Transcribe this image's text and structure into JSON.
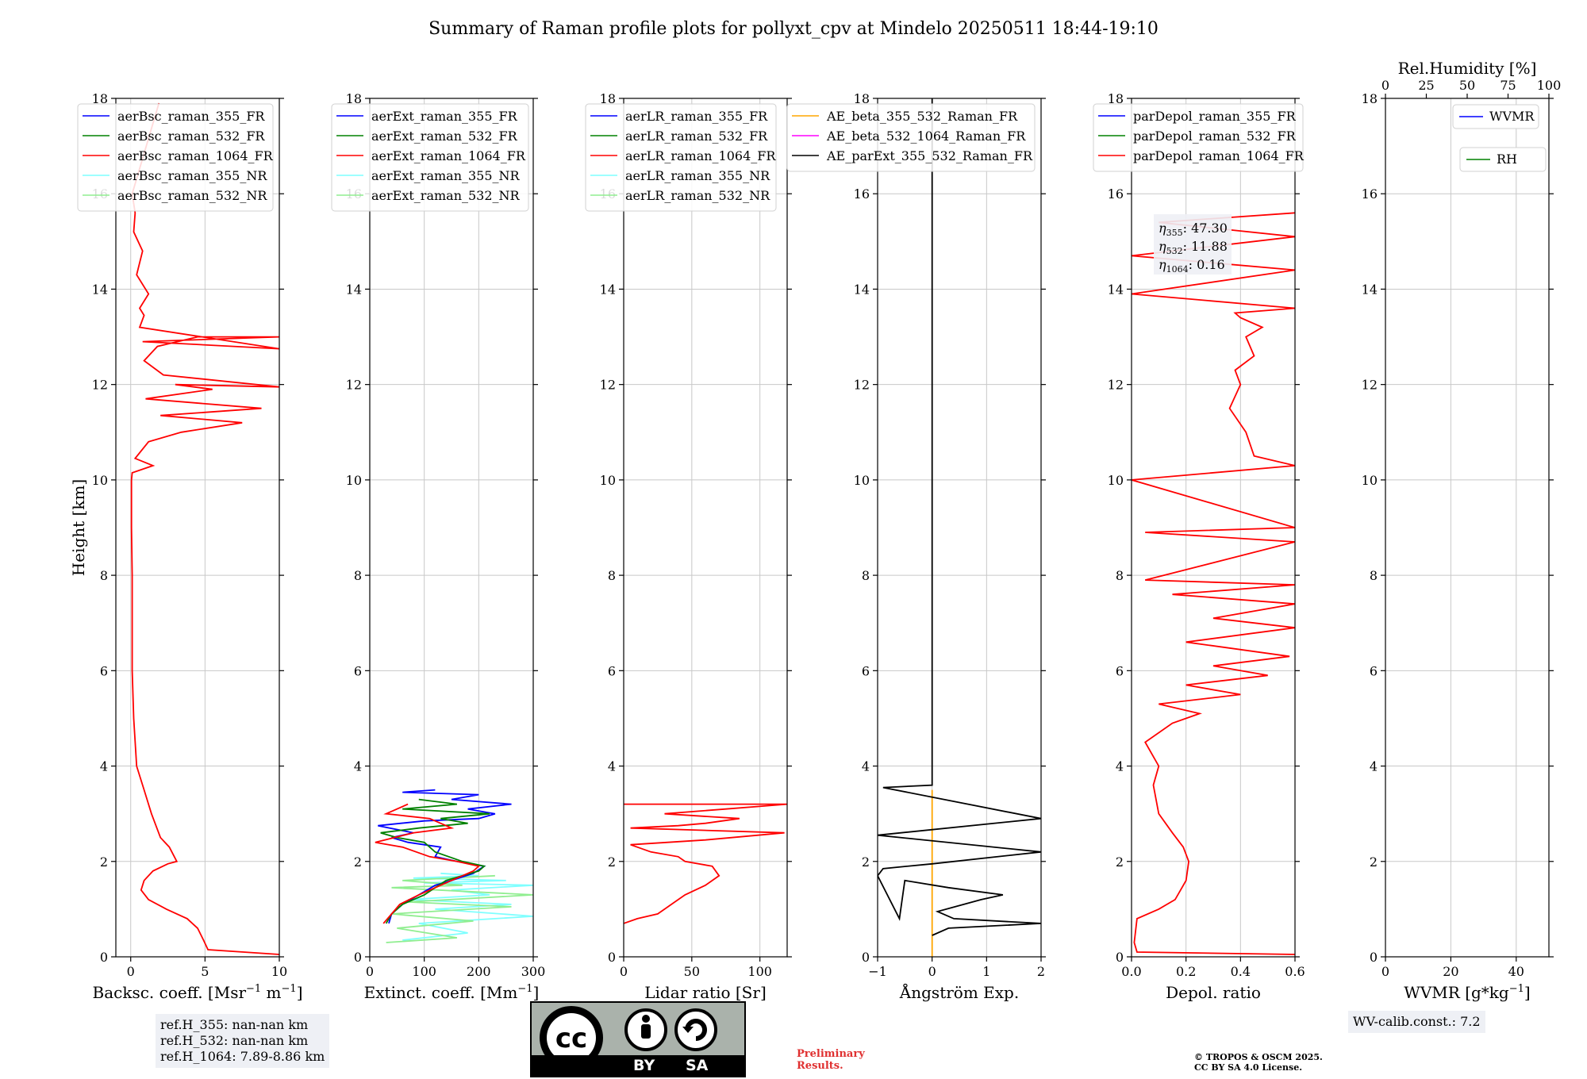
{
  "title": "Summary of Raman profile plots for pollyxt_cpv at Mindelo 20250511 18:44-19:10",
  "chart_data": [
    {
      "type": "line",
      "id": "bsc",
      "xlabel": "Backsc. coeff. [Msr",
      "xlabel_sup1": "−1",
      "xlabel_mid": " m",
      "xlabel_sup2": "−1",
      "xlabel_end": "]",
      "ylabel": "Height [km]",
      "xlim": [
        -1,
        10
      ],
      "ylim": [
        0,
        18
      ],
      "xticks": [
        "0",
        "5",
        "10"
      ],
      "xtick_values": [
        0,
        5,
        10
      ],
      "yticks": [
        "0",
        "2",
        "4",
        "6",
        "8",
        "10",
        "12",
        "14",
        "16",
        "18"
      ],
      "grid": true,
      "legend_position": "top-left",
      "legend": [
        "aerBsc_raman_355_FR",
        "aerBsc_raman_532_FR",
        "aerBsc_raman_1064_FR",
        "aerBsc_raman_355_NR",
        "aerBsc_raman_532_NR"
      ],
      "legend_colors": [
        "#0000ff",
        "#008000",
        "#ff0000",
        "#7fffff",
        "#90ee90"
      ],
      "series": [
        {
          "name": "aerBsc_raman_1064_FR",
          "color": "#ff0000",
          "x": [
            10,
            5.2,
            4.9,
            4.5,
            3.8,
            2.4,
            1.2,
            0.7,
            0.9,
            1.5,
            2.5,
            3.1,
            2.6,
            2.0,
            1.4,
            0.9,
            0.4,
            0.2,
            0.1,
            0.1,
            0.05,
            0.05,
            0.1,
            1.5,
            0.3,
            1.2,
            3.4,
            7.5,
            2.0,
            8.8,
            1.0,
            5.5,
            3.0,
            10,
            2.2,
            0.9,
            1.8,
            4.5,
            10,
            0.8,
            10,
            0.6,
            0.9,
            0.6,
            1.2,
            0.4,
            0.8,
            0.2,
            0.3,
            0.1,
            1.9
          ],
          "y": [
            0.05,
            0.15,
            0.35,
            0.6,
            0.8,
            1.0,
            1.2,
            1.4,
            1.6,
            1.8,
            1.95,
            2.0,
            2.3,
            2.5,
            3.0,
            3.5,
            4.0,
            5.0,
            6.0,
            8.0,
            9.0,
            10.0,
            10.15,
            10.3,
            10.45,
            10.8,
            11.0,
            11.2,
            11.35,
            11.5,
            11.7,
            11.9,
            12.0,
            11.95,
            12.2,
            12.5,
            12.8,
            13.0,
            13.0,
            12.9,
            12.75,
            13.2,
            13.45,
            13.6,
            13.9,
            14.3,
            14.8,
            15.2,
            15.6,
            16.0,
            17.9
          ]
        }
      ]
    },
    {
      "type": "line",
      "id": "ext",
      "xlabel": "Extinct. coeff. [Mm",
      "xlabel_sup1": "−1",
      "xlabel_end": "]",
      "xlim": [
        0,
        300
      ],
      "ylim": [
        0,
        18
      ],
      "xticks": [
        "0",
        "100",
        "200",
        "300"
      ],
      "xtick_values": [
        0,
        100,
        200,
        300
      ],
      "yticks": [
        "0",
        "2",
        "4",
        "6",
        "8",
        "10",
        "12",
        "14",
        "16",
        "18"
      ],
      "grid": true,
      "legend_position": "top-left",
      "legend": [
        "aerExt_raman_355_FR",
        "aerExt_raman_532_FR",
        "aerExt_raman_1064_FR",
        "aerExt_raman_355_NR",
        "aerExt_raman_532_NR"
      ],
      "legend_colors": [
        "#0000ff",
        "#008000",
        "#ff0000",
        "#7fffff",
        "#90ee90"
      ],
      "series": [
        {
          "name": "aerExt_raman_355_NR",
          "color": "#7fffff",
          "x": [
            60,
            180,
            90,
            300,
            120,
            260,
            70,
            220,
            150,
            300,
            100,
            250,
            80,
            200,
            130
          ],
          "y": [
            0.35,
            0.5,
            0.7,
            0.85,
            1.0,
            1.1,
            1.2,
            1.3,
            1.4,
            1.5,
            1.55,
            1.6,
            1.65,
            1.7,
            1.75
          ]
        },
        {
          "name": "aerExt_raman_532_NR",
          "color": "#90ee90",
          "x": [
            30,
            160,
            50,
            190,
            40,
            260,
            70,
            300,
            40,
            170,
            60,
            230
          ],
          "y": [
            0.3,
            0.4,
            0.6,
            0.75,
            0.9,
            1.05,
            1.15,
            1.3,
            1.45,
            1.5,
            1.6,
            1.7
          ]
        },
        {
          "name": "aerExt_raman_355_FR",
          "color": "#0000ff",
          "x": [
            35,
            40,
            60,
            90,
            120,
            150,
            190,
            210,
            160,
            120,
            130,
            70,
            40,
            80,
            15,
            100,
            200,
            230,
            180,
            260,
            150,
            200,
            60,
            120
          ],
          "y": [
            0.7,
            0.9,
            1.1,
            1.3,
            1.5,
            1.6,
            1.75,
            1.9,
            2.0,
            2.1,
            2.3,
            2.4,
            2.5,
            2.6,
            2.75,
            2.85,
            2.9,
            3.0,
            3.1,
            3.2,
            3.3,
            3.4,
            3.45,
            3.5
          ]
        },
        {
          "name": "aerExt_raman_532_FR",
          "color": "#008000",
          "x": [
            30,
            40,
            60,
            100,
            140,
            200,
            210,
            170,
            120,
            100,
            50,
            20,
            90,
            180,
            130,
            220,
            60,
            160,
            90
          ],
          "y": [
            0.7,
            0.9,
            1.1,
            1.3,
            1.6,
            1.8,
            1.9,
            2.0,
            2.2,
            2.4,
            2.5,
            2.6,
            2.7,
            2.8,
            2.9,
            3.0,
            3.1,
            3.2,
            3.3
          ]
        },
        {
          "name": "aerExt_raman_1064_FR",
          "color": "#ff0000",
          "x": [
            25,
            40,
            55,
            90,
            150,
            190,
            200,
            160,
            110,
            60,
            10,
            80,
            150,
            110,
            30,
            70
          ],
          "y": [
            0.7,
            0.9,
            1.1,
            1.3,
            1.6,
            1.8,
            1.9,
            2.0,
            2.1,
            2.3,
            2.4,
            2.6,
            2.7,
            2.9,
            3.0,
            3.2
          ]
        }
      ]
    },
    {
      "type": "line",
      "id": "lr",
      "xlabel": "Lidar ratio [Sr]",
      "xlim": [
        0,
        120
      ],
      "ylim": [
        0,
        18
      ],
      "xticks": [
        "0",
        "50",
        "100"
      ],
      "xtick_values": [
        0,
        50,
        100
      ],
      "yticks": [
        "0",
        "2",
        "4",
        "6",
        "8",
        "10",
        "12",
        "14",
        "16",
        "18"
      ],
      "grid": true,
      "legend_position": "top-left",
      "legend": [
        "aerLR_raman_355_FR",
        "aerLR_raman_532_FR",
        "aerLR_raman_1064_FR",
        "aerLR_raman_355_NR",
        "aerLR_raman_532_NR"
      ],
      "legend_colors": [
        "#0000ff",
        "#008000",
        "#ff0000",
        "#7fffff",
        "#90ee90"
      ],
      "series": [
        {
          "name": "aerLR_raman_1064_FR",
          "color": "#ff0000",
          "x": [
            0,
            10,
            25,
            35,
            45,
            60,
            70,
            65,
            45,
            40,
            20,
            5,
            60,
            118,
            5,
            40,
            60,
            85,
            30,
            75,
            120,
            0
          ],
          "y": [
            0.7,
            0.8,
            0.9,
            1.1,
            1.3,
            1.5,
            1.7,
            1.9,
            2.0,
            2.1,
            2.2,
            2.35,
            2.45,
            2.6,
            2.7,
            2.75,
            2.8,
            2.9,
            3.0,
            3.1,
            3.2,
            3.2
          ]
        }
      ]
    },
    {
      "type": "line",
      "id": "ae",
      "xlabel": "Ångström Exp.",
      "xlim": [
        -1,
        2
      ],
      "ylim": [
        0,
        18
      ],
      "xticks": [
        "−1",
        "0",
        "1",
        "2"
      ],
      "xtick_values": [
        -1,
        0,
        1,
        2
      ],
      "yticks": [
        "0",
        "2",
        "4",
        "6",
        "8",
        "10",
        "12",
        "14",
        "16",
        "18"
      ],
      "grid": true,
      "legend_position": "top-left",
      "legend": [
        "AE_beta_355_532_Raman_FR",
        "AE_beta_532_1064_Raman_FR",
        "AE_parExt_355_532_Raman_FR"
      ],
      "legend_colors": [
        "#ffa500",
        "#ff00ff",
        "#000000"
      ],
      "series": [
        {
          "name": "AE_beta_355_532_Raman_FR",
          "color": "#ffa500",
          "x": [
            0,
            0
          ],
          "y": [
            0,
            3.5
          ]
        },
        {
          "name": "AE_parExt_355_532_Raman_FR",
          "color": "#000000",
          "x": [
            0,
            0.3,
            2.0,
            0.4,
            0.1,
            0.9,
            1.3,
            0.3,
            -0.5,
            -0.6,
            -1.0,
            -0.9,
            0,
            2.0,
            -1.0,
            2.0,
            -0.9,
            0,
            0
          ],
          "y": [
            0.45,
            0.6,
            0.7,
            0.8,
            0.95,
            1.2,
            1.3,
            1.45,
            1.6,
            0.8,
            1.7,
            1.85,
            1.95,
            2.2,
            2.55,
            2.9,
            3.55,
            3.6,
            18
          ]
        }
      ]
    },
    {
      "type": "line",
      "id": "dep",
      "xlabel": "Depol. ratio",
      "xlim": [
        0,
        0.6
      ],
      "ylim": [
        0,
        18
      ],
      "xticks": [
        "0.0",
        "0.2",
        "0.4",
        "0.6"
      ],
      "xtick_values": [
        0,
        0.2,
        0.4,
        0.6
      ],
      "yticks": [
        "0",
        "2",
        "4",
        "6",
        "8",
        "10",
        "12",
        "14",
        "16",
        "18"
      ],
      "grid": true,
      "legend_position": "top-left",
      "legend": [
        "parDepol_raman_355_FR",
        "parDepol_raman_532_FR",
        "parDepol_raman_1064_FR"
      ],
      "legend_colors": [
        "#0000ff",
        "#008000",
        "#ff0000"
      ],
      "annotations": [
        {
          "label": "η",
          "sub": "355",
          "value": ": 47.30"
        },
        {
          "label": "η",
          "sub": "532",
          "value": ": 11.88"
        },
        {
          "label": "η",
          "sub": "1064",
          "value": ": 0.16"
        }
      ],
      "series": [
        {
          "name": "parDepol_raman_1064_FR",
          "color": "#ff0000",
          "x": [
            0.6,
            0.02,
            0.01,
            0.02,
            0.1,
            0.16,
            0.2,
            0.21,
            0.19,
            0.15,
            0.1,
            0.08,
            0.1,
            0.05,
            0.15,
            0.25,
            0.1,
            0.4,
            0.2,
            0.5,
            0.3,
            0.58,
            0.2,
            0.6,
            0.3,
            0.6,
            0.15,
            0.6,
            0.05,
            0.6,
            0.05,
            0.6,
            0.0,
            0.6,
            0.45,
            0.42,
            0.36,
            0.4,
            0.38,
            0.45,
            0.42,
            0.48,
            0.4,
            0.38,
            0.6,
            0.0,
            0.6,
            0.0,
            0.6,
            0.1,
            0.6
          ],
          "y": [
            0.05,
            0.1,
            0.3,
            0.8,
            1.0,
            1.2,
            1.6,
            2.0,
            2.3,
            2.6,
            3.0,
            3.6,
            4.0,
            4.5,
            4.9,
            5.1,
            5.3,
            5.5,
            5.7,
            5.9,
            6.1,
            6.3,
            6.6,
            6.9,
            7.1,
            7.4,
            7.6,
            7.8,
            7.9,
            8.7,
            8.9,
            9.0,
            10.0,
            10.3,
            10.5,
            11.0,
            11.5,
            12.0,
            12.3,
            12.6,
            13.0,
            13.2,
            13.4,
            13.5,
            13.6,
            13.9,
            14.4,
            14.7,
            15.1,
            15.4,
            15.6
          ]
        }
      ]
    },
    {
      "type": "line",
      "id": "wv",
      "xlabel": "WVMR [g*kg",
      "xlabel_sup1": "−1",
      "xlabel_end": "]",
      "top_xlabel": "Rel.Humidity [%]",
      "xlim": [
        0,
        50
      ],
      "ylim": [
        0,
        18
      ],
      "xticks": [
        "0",
        "20",
        "40"
      ],
      "xtick_values": [
        0,
        20,
        40
      ],
      "top_xticks": [
        "0",
        "25",
        "50",
        "75",
        "100"
      ],
      "top_xtick_values": [
        0,
        25,
        50,
        75,
        100
      ],
      "yticks": [
        "0",
        "2",
        "4",
        "6",
        "8",
        "10",
        "12",
        "14",
        "16",
        "18"
      ],
      "grid": true,
      "legend_position": "top-right",
      "legend": [
        "WVMR",
        "RH"
      ],
      "legend_colors": [
        "#0000ff",
        "#008000"
      ],
      "series": []
    }
  ],
  "boxes": {
    "ref_lines": [
      "ref.H_355: nan-nan km",
      "ref.H_532: nan-nan km",
      "ref.H_1064: 7.89-8.86 km"
    ],
    "wv_calib": "WV-calib.const.: 7.2"
  },
  "license": {
    "badge_left": "BY",
    "badge_right": "SA",
    "preliminary": [
      "Preliminary",
      "Results."
    ],
    "copyright": [
      "© TROPOS & OSCM 2025.",
      "CC BY SA 4.0 License."
    ]
  }
}
